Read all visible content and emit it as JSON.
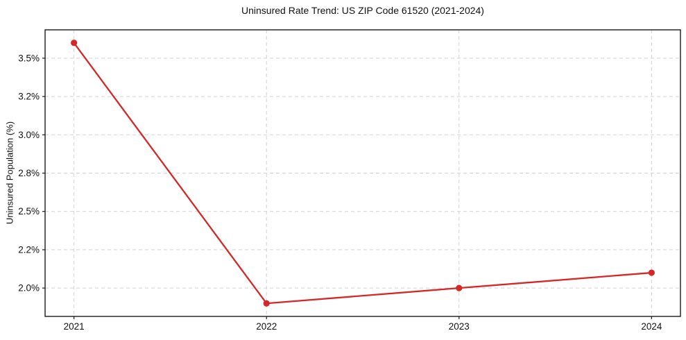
{
  "page": {
    "background": "#ffffff"
  },
  "chart_data": {
    "type": "line",
    "title": "Uninsured Rate Trend: US ZIP Code 61520 (2021-2024)",
    "xlabel": "",
    "ylabel": "Uninsured Population (%)",
    "x": [
      2021,
      2022,
      2023,
      2024
    ],
    "series": [
      {
        "name": "uninsured-rate",
        "values": [
          3.6,
          1.9,
          2.0,
          2.1
        ],
        "color": "#d62728",
        "marker": "circle",
        "line_width": 2.3,
        "marker_radius": 4.6
      }
    ],
    "xticks": [
      {
        "v": 2021,
        "label": "2021"
      },
      {
        "v": 2022,
        "label": "2022"
      },
      {
        "v": 2023,
        "label": "2023"
      },
      {
        "v": 2024,
        "label": "2024"
      }
    ],
    "yticks": [
      {
        "v": 2.0,
        "label": "2.0%"
      },
      {
        "v": 2.25,
        "label": "2.2%"
      },
      {
        "v": 2.5,
        "label": "2.5%"
      },
      {
        "v": 2.75,
        "label": "2.8%"
      },
      {
        "v": 3.0,
        "label": "3.0%"
      },
      {
        "v": 3.25,
        "label": "3.2%"
      },
      {
        "v": 3.5,
        "label": "3.5%"
      }
    ],
    "xlim": [
      2020.85,
      2024.15
    ],
    "ylim": [
      1.815,
      3.685
    ],
    "grid": {
      "show": true,
      "style": "dashed",
      "color": "#d2d2d2",
      "dash": "5 4"
    },
    "legend": "none",
    "axis_color": "#1a1a1a",
    "tick_color": "#1a1a1a",
    "text_color": "#111111"
  }
}
